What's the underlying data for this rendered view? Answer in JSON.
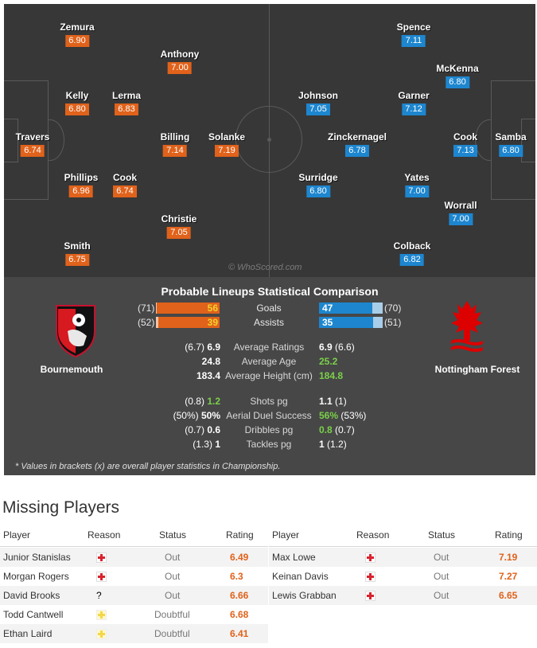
{
  "home_team": {
    "name": "Bournemouth",
    "color": "#e0621b",
    "crest_text": "AFC BOURNEMOUTH"
  },
  "away_team": {
    "name": "Nottingham Forest",
    "color": "#1d86cf"
  },
  "home_players": [
    {
      "name": "Zemura",
      "rating": "6.90"
    },
    {
      "name": "Anthony",
      "rating": "7.00"
    },
    {
      "name": "Kelly",
      "rating": "6.80"
    },
    {
      "name": "Lerma",
      "rating": "6.83"
    },
    {
      "name": "Travers",
      "rating": "6.74"
    },
    {
      "name": "Billing",
      "rating": "7.14"
    },
    {
      "name": "Solanke",
      "rating": "7.19"
    },
    {
      "name": "Phillips",
      "rating": "6.96"
    },
    {
      "name": "Cook",
      "rating": "6.74"
    },
    {
      "name": "Christie",
      "rating": "7.05"
    },
    {
      "name": "Smith",
      "rating": "6.75"
    }
  ],
  "away_players": [
    {
      "name": "Spence",
      "rating": "7.11"
    },
    {
      "name": "McKenna",
      "rating": "6.80"
    },
    {
      "name": "Johnson",
      "rating": "7.05"
    },
    {
      "name": "Garner",
      "rating": "7.12"
    },
    {
      "name": "Zinckernagel",
      "rating": "6.78"
    },
    {
      "name": "Cook",
      "rating": "7.13"
    },
    {
      "name": "Samba",
      "rating": "6.80"
    },
    {
      "name": "Surridge",
      "rating": "6.80"
    },
    {
      "name": "Yates",
      "rating": "7.00"
    },
    {
      "name": "Worrall",
      "rating": "7.00"
    },
    {
      "name": "Colback",
      "rating": "6.82"
    }
  ],
  "watermark": "© WhoScored.com",
  "stats": {
    "title": "Probable Lineups Statistical Comparison",
    "bars": [
      {
        "label": "Goals",
        "home": "56",
        "home_overall": "(71)",
        "away": "47",
        "away_overall": "(70)",
        "home_frac": 0.54,
        "away_frac": 0.46
      },
      {
        "label": "Assists",
        "home": "39",
        "home_overall": "(52)",
        "away": "35",
        "away_overall": "(51)",
        "home_frac": 0.53,
        "away_frac": 0.47
      }
    ],
    "rows": [
      {
        "label": "Average Ratings",
        "home": "6.9",
        "home_overall": "(6.7)",
        "away": "6.9",
        "away_overall": "(6.6)",
        "hc": "b",
        "ac": "b"
      },
      {
        "label": "Average Age",
        "home": "24.8",
        "home_overall": "",
        "away": "25.2",
        "away_overall": "",
        "hc": "b",
        "ac": "g"
      },
      {
        "label": "Average Height (cm)",
        "home": "183.4",
        "home_overall": "",
        "away": "184.8",
        "away_overall": "",
        "hc": "b",
        "ac": "g"
      },
      {
        "label": "Shots pg",
        "home": "1.2",
        "home_overall": "(0.8)",
        "away": "1.1",
        "away_overall": "(1)",
        "hc": "g",
        "ac": "b"
      },
      {
        "label": "Aerial Duel Success",
        "home": "50%",
        "home_overall": "(50%)",
        "away": "56%",
        "away_overall": "(53%)",
        "hc": "b",
        "ac": "g"
      },
      {
        "label": "Dribbles pg",
        "home": "0.6",
        "home_overall": "(0.7)",
        "away": "0.8",
        "away_overall": "(0.7)",
        "hc": "b",
        "ac": "g"
      },
      {
        "label": "Tackles pg",
        "home": "1",
        "home_overall": "(1.3)",
        "away": "1",
        "away_overall": "(1.2)",
        "hc": "b",
        "ac": "b"
      }
    ],
    "footnote": "* Values in brackets (x) are overall player statistics in Championship."
  },
  "missing": {
    "title": "Missing Players",
    "headers": {
      "player": "Player",
      "reason": "Reason",
      "status": "Status",
      "rating": "Rating"
    },
    "home": [
      {
        "player": "Junior Stanislas",
        "reason": "injury",
        "status": "Out",
        "rating": "6.49"
      },
      {
        "player": "Morgan Rogers",
        "reason": "injury",
        "status": "Out",
        "rating": "6.3"
      },
      {
        "player": "David Brooks",
        "reason": "unknown",
        "reason_text": "?",
        "status": "Out",
        "rating": "6.66"
      },
      {
        "player": "Todd Cantwell",
        "reason": "doubtful",
        "status": "Doubtful",
        "rating": "6.68"
      },
      {
        "player": "Ethan Laird",
        "reason": "doubtful",
        "status": "Doubtful",
        "rating": "6.41"
      }
    ],
    "away": [
      {
        "player": "Max Lowe",
        "reason": "injury",
        "status": "Out",
        "rating": "7.19"
      },
      {
        "player": "Keinan Davis",
        "reason": "injury",
        "status": "Out",
        "rating": "7.27"
      },
      {
        "player": "Lewis Grabban",
        "reason": "injury",
        "status": "Out",
        "rating": "6.65"
      }
    ]
  }
}
